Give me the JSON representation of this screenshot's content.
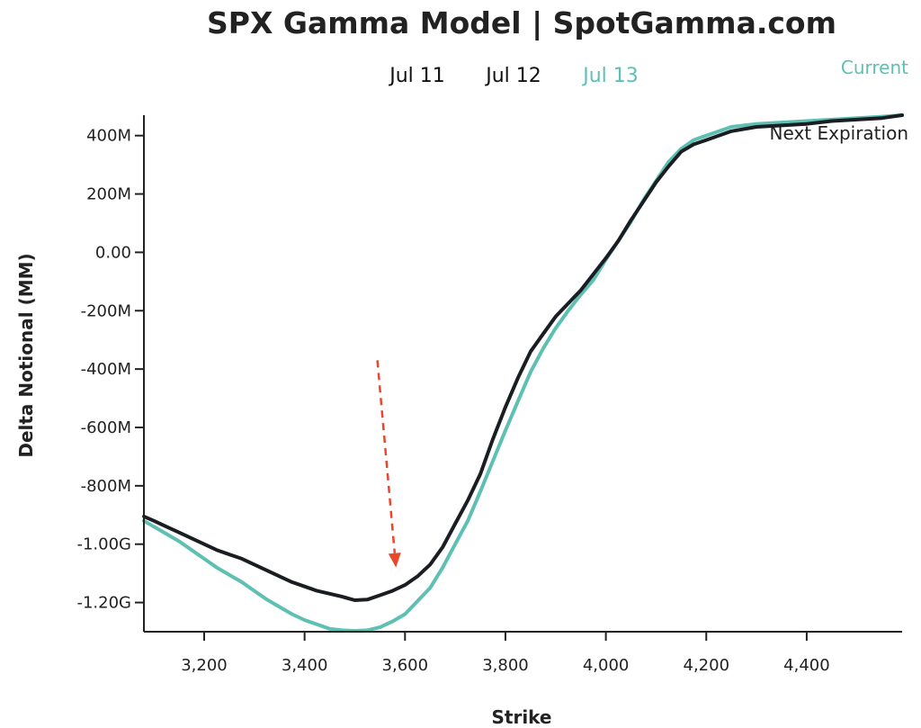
{
  "chart_data": {
    "type": "line",
    "title": "SPX Gamma Model | SpotGamma.com",
    "xlabel": "Strike",
    "ylabel": "Delta Notional (MM)",
    "xlim": [
      3080,
      4590
    ],
    "ylim": [
      -1300,
      470
    ],
    "x_ticks": [
      {
        "value": 3200,
        "label": "3,200"
      },
      {
        "value": 3400,
        "label": "3,400"
      },
      {
        "value": 3600,
        "label": "3,600"
      },
      {
        "value": 3800,
        "label": "3,800"
      },
      {
        "value": 4000,
        "label": "4,000"
      },
      {
        "value": 4200,
        "label": "4,200"
      },
      {
        "value": 4400,
        "label": "4,400"
      }
    ],
    "y_ticks": [
      {
        "value": 400,
        "label": "400M"
      },
      {
        "value": 200,
        "label": "200M"
      },
      {
        "value": 0,
        "label": "0.00"
      },
      {
        "value": -200,
        "label": "-200M"
      },
      {
        "value": -400,
        "label": "-400M"
      },
      {
        "value": -600,
        "label": "-600M"
      },
      {
        "value": -800,
        "label": "-800M"
      },
      {
        "value": -1000,
        "label": "-1.00G"
      },
      {
        "value": -1200,
        "label": "-1.20G"
      }
    ],
    "legend": [
      {
        "label": "Jul 11",
        "color": "#111111"
      },
      {
        "label": "Jul 12",
        "color": "#111111"
      },
      {
        "label": "Jul 13",
        "color": "#5ebfb3"
      }
    ],
    "corner_labels": {
      "current": {
        "label": "Current",
        "color": "#5ebfb3"
      },
      "next": {
        "label": "Next Expiration",
        "color": "#222222"
      }
    },
    "arrow": {
      "from": [
        3545,
        -370
      ],
      "to": [
        3582,
        -1080
      ],
      "color": "#e8472e"
    },
    "series": [
      {
        "name": "Current",
        "color": "#5ebfb3",
        "x": [
          3080,
          3100,
          3125,
          3150,
          3175,
          3200,
          3225,
          3250,
          3275,
          3300,
          3325,
          3350,
          3375,
          3400,
          3425,
          3450,
          3475,
          3500,
          3525,
          3550,
          3575,
          3600,
          3625,
          3650,
          3675,
          3700,
          3725,
          3750,
          3775,
          3800,
          3825,
          3850,
          3875,
          3900,
          3925,
          3950,
          3975,
          4000,
          4025,
          4050,
          4075,
          4100,
          4125,
          4150,
          4175,
          4200,
          4250,
          4300,
          4350,
          4400,
          4450,
          4500,
          4550,
          4590
        ],
        "y": [
          -920,
          -940,
          -965,
          -990,
          -1020,
          -1050,
          -1080,
          -1105,
          -1130,
          -1160,
          -1190,
          -1215,
          -1240,
          -1260,
          -1275,
          -1290,
          -1295,
          -1297,
          -1295,
          -1285,
          -1265,
          -1240,
          -1195,
          -1150,
          -1080,
          -1000,
          -920,
          -820,
          -715,
          -610,
          -510,
          -410,
          -330,
          -260,
          -200,
          -145,
          -95,
          -25,
          40,
          105,
          180,
          245,
          310,
          355,
          385,
          400,
          430,
          440,
          445,
          450,
          455,
          460,
          465,
          470
        ]
      },
      {
        "name": "Next Expiration",
        "color": "#1a1d22",
        "x": [
          3080,
          3100,
          3125,
          3150,
          3175,
          3200,
          3225,
          3250,
          3275,
          3300,
          3325,
          3350,
          3375,
          3400,
          3425,
          3450,
          3475,
          3500,
          3525,
          3550,
          3575,
          3600,
          3625,
          3650,
          3675,
          3700,
          3725,
          3750,
          3775,
          3800,
          3825,
          3850,
          3875,
          3900,
          3925,
          3950,
          3975,
          4000,
          4025,
          4050,
          4075,
          4100,
          4125,
          4150,
          4175,
          4200,
          4250,
          4300,
          4350,
          4400,
          4450,
          4500,
          4550,
          4590
        ],
        "y": [
          -905,
          -920,
          -940,
          -960,
          -980,
          -1000,
          -1020,
          -1035,
          -1050,
          -1070,
          -1090,
          -1110,
          -1130,
          -1145,
          -1160,
          -1170,
          -1180,
          -1192,
          -1190,
          -1175,
          -1160,
          -1140,
          -1110,
          -1070,
          -1010,
          -930,
          -850,
          -760,
          -640,
          -530,
          -430,
          -340,
          -280,
          -220,
          -175,
          -130,
          -75,
          -20,
          40,
          110,
          175,
          240,
          295,
          345,
          370,
          385,
          415,
          430,
          435,
          440,
          450,
          455,
          460,
          470
        ]
      }
    ]
  }
}
